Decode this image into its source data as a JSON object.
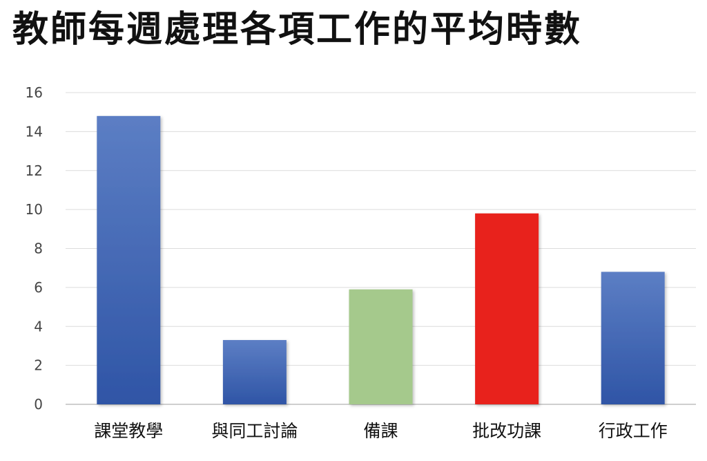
{
  "chart_data": {
    "type": "bar",
    "title": "教師每週處理各項工作的平均時數",
    "xlabel": "",
    "ylabel": "",
    "ylim": [
      0,
      16
    ],
    "yticks": [
      0,
      2,
      4,
      6,
      8,
      10,
      12,
      14,
      16
    ],
    "grid": true,
    "legend": "none",
    "categories": [
      "課堂教學",
      "與同工討論",
      "備課",
      "批改功課",
      "行政工作"
    ],
    "values": [
      14.8,
      3.3,
      5.9,
      9.8,
      6.8
    ],
    "colors": [
      "#3e62b0",
      "#3e62b0",
      "#a5c98c",
      "#e8201d",
      "#3e62b0"
    ],
    "palette": {
      "blue": "#3e62b0",
      "green": "#a5c98c",
      "red": "#e8201d",
      "gridline": "#dcdcdc"
    }
  }
}
